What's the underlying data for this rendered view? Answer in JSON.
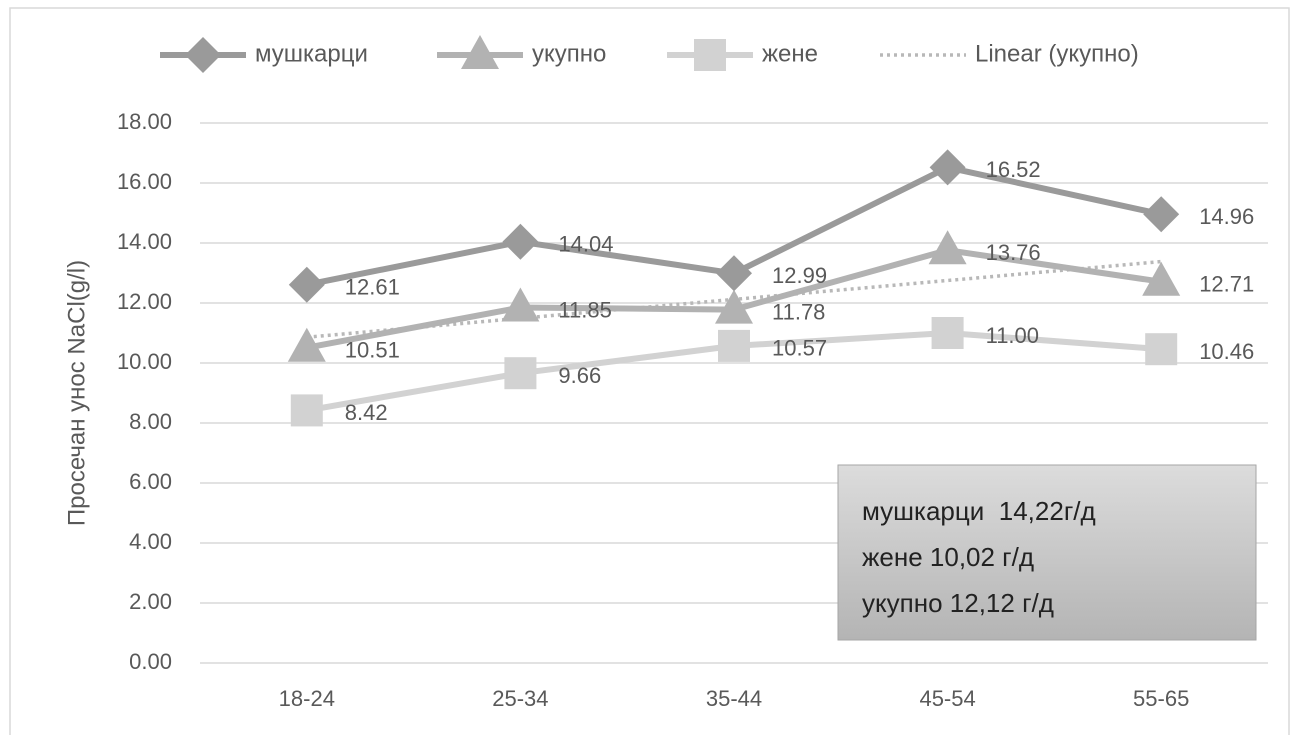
{
  "chart_data": {
    "type": "line",
    "ylabel": "Просечан унос NaCl(g/l)",
    "categories": [
      "18-24",
      "25-34",
      "35-44",
      "45-54",
      "55-65"
    ],
    "series": [
      {
        "name": "мушкарци",
        "color": "#9a9a9a",
        "marker": "diamond",
        "values": [
          12.61,
          14.04,
          12.99,
          16.52,
          14.96
        ],
        "value_labels": [
          "12.61",
          "14.04",
          "12.99",
          "16.52",
          "14.96"
        ]
      },
      {
        "name": "укупно",
        "color": "#b2b2b2",
        "marker": "triangle",
        "values": [
          10.51,
          11.85,
          11.78,
          13.76,
          12.71
        ],
        "value_labels": [
          "10.51",
          "11.85",
          "11.78",
          "13.76",
          "12.71"
        ]
      },
      {
        "name": "жене",
        "color": "#d2d2d2",
        "marker": "square",
        "values": [
          8.42,
          9.66,
          10.57,
          11.0,
          10.46
        ],
        "value_labels": [
          "8.42",
          "9.66",
          "10.57",
          "11.00",
          "10.46"
        ]
      },
      {
        "name": "Linear (укупно)",
        "color": "#b8b8b8",
        "style": "dotted",
        "values": [
          10.86,
          11.49,
          12.12,
          12.75,
          13.38
        ]
      }
    ],
    "ylim": [
      0,
      18
    ],
    "yticks": [
      {
        "value": 0,
        "label": "0.00"
      },
      {
        "value": 2,
        "label": "2.00"
      },
      {
        "value": 4,
        "label": "4.00"
      },
      {
        "value": 6,
        "label": "6.00"
      },
      {
        "value": 8,
        "label": "8.00"
      },
      {
        "value": 10,
        "label": "10.00"
      },
      {
        "value": 12,
        "label": "12.00"
      },
      {
        "value": 14,
        "label": "14.00"
      },
      {
        "value": 16,
        "label": "16.00"
      },
      {
        "value": 18,
        "label": "18.00"
      }
    ],
    "grid": true,
    "legend": "top",
    "annotation": [
      "мушкарци  14,22г/д",
      "жене 10,02 г/д",
      "укупно 12,12 г/д"
    ]
  }
}
